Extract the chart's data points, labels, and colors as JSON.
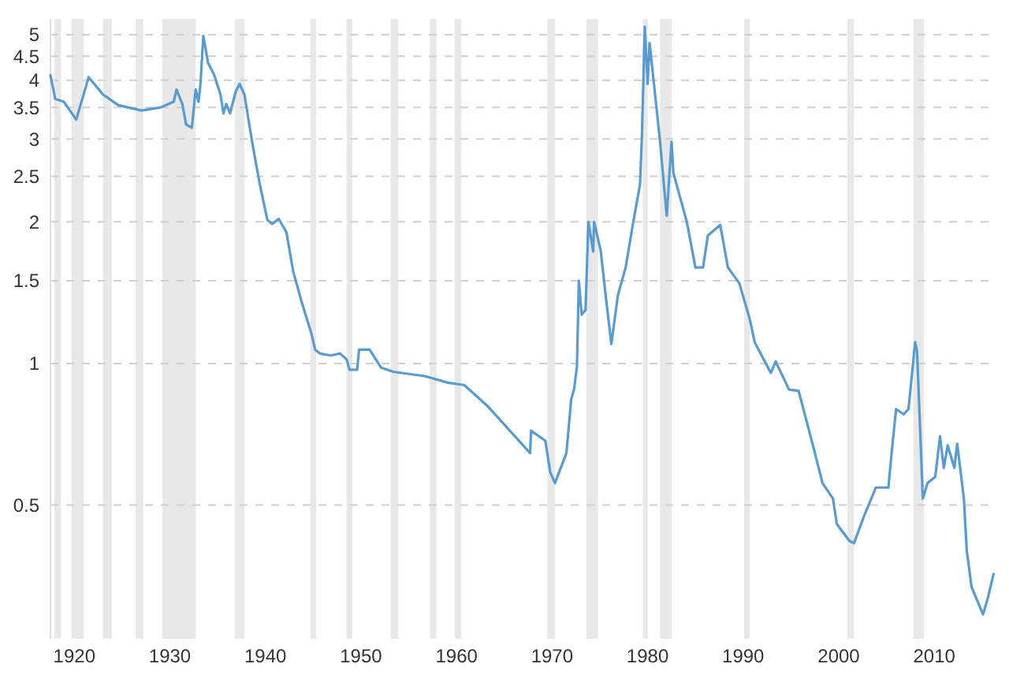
{
  "chart_data": {
    "type": "line",
    "log": "y",
    "grid": "y",
    "xlim": [
      1917.5,
      2016.5
    ],
    "ylim": [
      0.26,
      5.4
    ],
    "xticks": [
      1920,
      1930,
      1940,
      1950,
      1960,
      1970,
      1980,
      1990,
      2000,
      2010
    ],
    "yticks": [
      0.5,
      1,
      1.5,
      2,
      2.5,
      3,
      3.5,
      4,
      4.5,
      5
    ],
    "series": [
      {
        "color": "#5a9bcf",
        "x": [
          1917.5,
          1918,
          1918.9,
          1920.2,
          1921.5,
          1923,
          1924.6,
          1927,
          1929,
          1930.4,
          1930.7,
          1931.3,
          1931.7,
          1932.3,
          1932.7,
          1933,
          1933.2,
          1933.5,
          1934,
          1934.6,
          1935.3,
          1935.6,
          1935.9,
          1936.3,
          1936.9,
          1937.3,
          1937.8,
          1938.6,
          1939.4,
          1940.2,
          1940.7,
          1941.4,
          1942.2,
          1942.9,
          1943.8,
          1944.8,
          1945.2,
          1945.7,
          1946.8,
          1947.8,
          1948.5,
          1948.8,
          1949.6,
          1949.8,
          1950.9,
          1952.1,
          1953.4,
          1956.7,
          1959.1,
          1960.8,
          1963.3,
          1967.7,
          1967.8,
          1969.3,
          1969.8,
          1970.3,
          1971.5,
          1972,
          1972.3,
          1972.6,
          1972.8,
          1973.1,
          1973.5,
          1973.8,
          1974.3,
          1974.4,
          1975.1,
          1975.6,
          1976.2,
          1976.9,
          1977.7,
          1978.5,
          1979.2,
          1979.4,
          1979.7,
          1980,
          1980.2,
          1980.9,
          1981.3,
          1982,
          1982.5,
          1982.7,
          1984.1,
          1985,
          1985.8,
          1986.3,
          1987.6,
          1988.4,
          1989.6,
          1990.7,
          1991.2,
          1992.9,
          1993.4,
          1994.8,
          1995.8,
          1997.3,
          1998.3,
          1999.4,
          1999.8,
          2001.1,
          2001.6,
          2002.7,
          2003.9,
          2005.2,
          2005.5,
          2006,
          2006.8,
          2007.3,
          2008,
          2008.2,
          2008.8,
          2009.3,
          2010.1,
          2010.6,
          2011,
          2011.4,
          2012.1,
          2012.4,
          2013.1,
          2013.4,
          2013.9,
          2015.1,
          2015.6,
          2016.2
        ],
        "values": [
          4.1,
          3.65,
          3.6,
          3.3,
          4.06,
          3.73,
          3.54,
          3.45,
          3.5,
          3.6,
          3.82,
          3.56,
          3.22,
          3.17,
          3.82,
          3.6,
          3.93,
          4.97,
          4.35,
          4.12,
          3.73,
          3.4,
          3.56,
          3.4,
          3.79,
          3.93,
          3.73,
          2.96,
          2.41,
          2.02,
          1.98,
          2.03,
          1.9,
          1.57,
          1.35,
          1.16,
          1.07,
          1.05,
          1.04,
          1.05,
          1.02,
          0.97,
          0.97,
          1.07,
          1.07,
          0.98,
          0.96,
          0.94,
          0.91,
          0.9,
          0.81,
          0.645,
          0.72,
          0.685,
          0.588,
          0.557,
          0.645,
          0.84,
          0.88,
          0.985,
          1.5,
          1.27,
          1.3,
          2.0,
          1.73,
          2.0,
          1.73,
          1.4,
          1.1,
          1.4,
          1.6,
          2.0,
          2.4,
          3.03,
          5.2,
          3.93,
          4.8,
          3.54,
          2.96,
          2.06,
          2.96,
          2.54,
          2.0,
          1.6,
          1.6,
          1.87,
          1.97,
          1.6,
          1.48,
          1.24,
          1.11,
          0.955,
          1.01,
          0.88,
          0.875,
          0.67,
          0.557,
          0.516,
          0.456,
          0.42,
          0.415,
          0.477,
          0.545,
          0.545,
          0.635,
          0.8,
          0.78,
          0.8,
          1.11,
          1.06,
          0.516,
          0.557,
          0.574,
          0.7,
          0.6,
          0.67,
          0.6,
          0.675,
          0.516,
          0.4,
          0.335,
          0.293,
          0.317,
          0.357
        ]
      }
    ],
    "bands": [
      {
        "axis": "x",
        "from": 1917.9,
        "to": 1918.6,
        "color": "#e8e8e8"
      },
      {
        "axis": "x",
        "from": 1919.7,
        "to": 1921.0,
        "color": "#e8e8e8"
      },
      {
        "axis": "x",
        "from": 1923.0,
        "to": 1923.9,
        "color": "#e8e8e8"
      },
      {
        "axis": "x",
        "from": 1926.4,
        "to": 1927.2,
        "color": "#e8e8e8"
      },
      {
        "axis": "x",
        "from": 1929.2,
        "to": 1932.7,
        "color": "#e8e8e8"
      },
      {
        "axis": "x",
        "from": 1936.8,
        "to": 1937.8,
        "color": "#e8e8e8"
      },
      {
        "axis": "x",
        "from": 1944.7,
        "to": 1945.3,
        "color": "#e8e8e8"
      },
      {
        "axis": "x",
        "from": 1948.5,
        "to": 1949.1,
        "color": "#e8e8e8"
      },
      {
        "axis": "x",
        "from": 1953.1,
        "to": 1953.9,
        "color": "#e8e8e8"
      },
      {
        "axis": "x",
        "from": 1957.2,
        "to": 1957.9,
        "color": "#e8e8e8"
      },
      {
        "axis": "x",
        "from": 1959.8,
        "to": 1960.5,
        "color": "#e8e8e8"
      },
      {
        "axis": "x",
        "from": 1969.5,
        "to": 1970.3,
        "color": "#e8e8e8"
      },
      {
        "axis": "x",
        "from": 1973.6,
        "to": 1974.8,
        "color": "#e8e8e8"
      },
      {
        "axis": "x",
        "from": 1979.5,
        "to": 1980.0,
        "color": "#e8e8e8"
      },
      {
        "axis": "x",
        "from": 1981.3,
        "to": 1982.5,
        "color": "#e8e8e8"
      },
      {
        "axis": "x",
        "from": 1990.1,
        "to": 1990.7,
        "color": "#e8e8e8"
      },
      {
        "axis": "x",
        "from": 2000.9,
        "to": 2001.6,
        "color": "#e8e8e8"
      },
      {
        "axis": "x",
        "from": 2007.8,
        "to": 2008.9,
        "color": "#e8e8e8"
      }
    ]
  }
}
